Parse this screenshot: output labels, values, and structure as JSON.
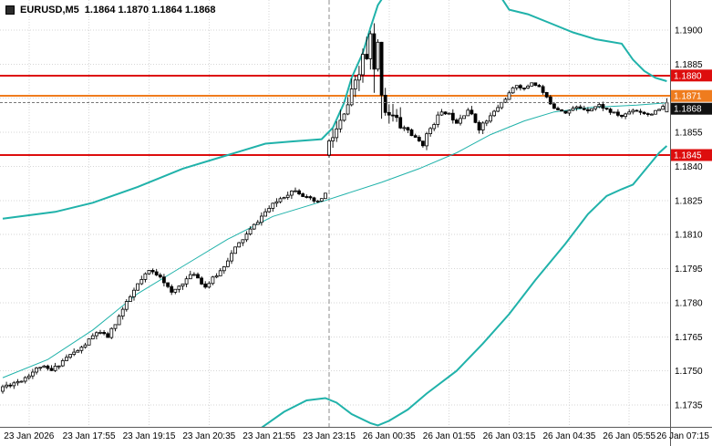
{
  "legend": {
    "symbol": "EURUSD,M5",
    "ohlc": "1.1864 1.1870 1.1864 1.1868"
  },
  "colors": {
    "background": "#ffffff",
    "grid": "#d6d6d6",
    "band": "#20b2aa",
    "candle": "#000000",
    "candle_up_fill": "#ffffff",
    "candle_down_fill": "#000000",
    "level_red": "#dd0e0e",
    "level_orange": "#ef7c1e",
    "bid_line": "#777777",
    "bid_badge": "#111111",
    "separator": "#8c8c8c",
    "axis_text": "#000000",
    "axis_border": "#5a5a5a"
  },
  "chart_data": {
    "type": "candlestick",
    "symbol": "EURUSD",
    "timeframe": "M5",
    "ohlc_current": {
      "open": "1.1864",
      "high": "1.1870",
      "low": "1.1864",
      "close": "1.1868"
    },
    "last_bar": {
      "o": 1.1864,
      "h": 1.187,
      "l": 1.1864,
      "c": 1.1868
    },
    "bars_total": 178,
    "grid": {
      "first_label_bar": 7,
      "label_step": 16,
      "day_separator_bar": 87
    },
    "x_labels": [
      "23 Jan 2026",
      "23 Jan 17:55",
      "23 Jan 19:15",
      "23 Jan 20:35",
      "23 Jan 21:55",
      "23 Jan 23:15",
      "26 Jan 00:35",
      "26 Jan 01:55",
      "26 Jan 03:15",
      "26 Jan 04:35",
      "26 Jan 05:55",
      "26 Jan 07:15"
    ],
    "price_axis": {
      "top_price": 1.191325,
      "bottom_price": 1.172536,
      "ticks": [
        1.19,
        1.1885,
        1.187,
        1.1855,
        1.184,
        1.1825,
        1.181,
        1.1795,
        1.178,
        1.1765,
        1.175,
        1.1735
      ]
    },
    "levels": [
      {
        "price": 1.188,
        "label": "1.1880",
        "color": "#dd0e0e",
        "width": 2
      },
      {
        "price": 1.1871,
        "label": "1.1871",
        "color": "#ef7c1e",
        "width": 2
      },
      {
        "price": 1.1845,
        "label": "1.1845",
        "color": "#dd0e0e",
        "width": 2
      }
    ],
    "bid": {
      "price": 1.1868,
      "label": "1.1868"
    },
    "price_path_anchors": [
      [
        0,
        1.1743
      ],
      [
        5,
        1.1746
      ],
      [
        10,
        1.1752
      ],
      [
        13,
        1.175
      ],
      [
        17,
        1.1756
      ],
      [
        21,
        1.176
      ],
      [
        25,
        1.1767
      ],
      [
        28,
        1.1765
      ],
      [
        32,
        1.1777
      ],
      [
        36,
        1.1788
      ],
      [
        39,
        1.1794
      ],
      [
        42,
        1.1792
      ],
      [
        45,
        1.1784
      ],
      [
        48,
        1.1789
      ],
      [
        51,
        1.1793
      ],
      [
        54,
        1.1787
      ],
      [
        58,
        1.1794
      ],
      [
        62,
        1.1804
      ],
      [
        66,
        1.1812
      ],
      [
        70,
        1.182
      ],
      [
        74,
        1.1826
      ],
      [
        78,
        1.183
      ],
      [
        81,
        1.1826
      ],
      [
        84,
        1.1824
      ],
      [
        86,
        1.1828
      ],
      [
        87,
        1.185
      ],
      [
        89,
        1.1856
      ],
      [
        91,
        1.1862
      ],
      [
        93,
        1.1872
      ],
      [
        95,
        1.188
      ],
      [
        96,
        1.189
      ],
      [
        97,
        1.1885
      ],
      [
        98,
        1.1896
      ],
      [
        99,
        1.188
      ],
      [
        100,
        1.1892
      ],
      [
        101,
        1.1875
      ],
      [
        102,
        1.1865
      ],
      [
        104,
        1.1862
      ],
      [
        106,
        1.1858
      ],
      [
        108,
        1.1856
      ],
      [
        110,
        1.1852
      ],
      [
        112,
        1.185
      ],
      [
        114,
        1.1857
      ],
      [
        116,
        1.1862
      ],
      [
        118,
        1.1864
      ],
      [
        121,
        1.186
      ],
      [
        124,
        1.1865
      ],
      [
        127,
        1.1857
      ],
      [
        129,
        1.186
      ],
      [
        132,
        1.1866
      ],
      [
        135,
        1.1872
      ],
      [
        137,
        1.1876
      ],
      [
        139,
        1.1874
      ],
      [
        141,
        1.1877
      ],
      [
        143,
        1.1875
      ],
      [
        145,
        1.187
      ],
      [
        147,
        1.1866
      ],
      [
        150,
        1.1864
      ],
      [
        153,
        1.1866
      ],
      [
        156,
        1.1865
      ],
      [
        159,
        1.1867
      ],
      [
        162,
        1.1864
      ],
      [
        165,
        1.1862
      ],
      [
        168,
        1.1865
      ],
      [
        170,
        1.1864
      ],
      [
        172,
        1.1863
      ],
      [
        174,
        1.1864
      ],
      [
        176,
        1.1866
      ],
      [
        177,
        1.1868
      ]
    ],
    "upper_band_anchors": [
      [
        0,
        1.1817
      ],
      [
        14,
        1.182
      ],
      [
        24,
        1.1824
      ],
      [
        36,
        1.1831
      ],
      [
        48,
        1.1839
      ],
      [
        60,
        1.1845
      ],
      [
        70,
        1.185
      ],
      [
        77,
        1.1851
      ],
      [
        85,
        1.1852
      ],
      [
        88,
        1.1857
      ],
      [
        91,
        1.1868
      ],
      [
        93,
        1.1879
      ],
      [
        96,
        1.189
      ],
      [
        98,
        1.1901
      ],
      [
        100,
        1.1911
      ],
      [
        102,
        1.1916
      ],
      [
        110,
        1.1924
      ],
      [
        120,
        1.1926
      ],
      [
        128,
        1.192
      ],
      [
        133,
        1.1914
      ],
      [
        135,
        1.1909
      ],
      [
        140,
        1.1907
      ],
      [
        146,
        1.1903
      ],
      [
        152,
        1.1899
      ],
      [
        158,
        1.1896
      ],
      [
        165,
        1.1894
      ],
      [
        168,
        1.1887
      ],
      [
        171,
        1.1882
      ],
      [
        174,
        1.1879
      ],
      [
        177,
        1.18775
      ]
    ],
    "lower_band_anchors": [
      [
        60,
        1.1715
      ],
      [
        69,
        1.1725
      ],
      [
        75,
        1.1732
      ],
      [
        81,
        1.1737
      ],
      [
        86,
        1.1738
      ],
      [
        89,
        1.1736
      ],
      [
        93,
        1.1731
      ],
      [
        98,
        1.1727
      ],
      [
        100,
        1.1726
      ],
      [
        103,
        1.1728
      ],
      [
        108,
        1.1733
      ],
      [
        113,
        1.174
      ],
      [
        121,
        1.175
      ],
      [
        128,
        1.1762
      ],
      [
        135,
        1.1775
      ],
      [
        142,
        1.179
      ],
      [
        150,
        1.1806
      ],
      [
        156,
        1.1819
      ],
      [
        161,
        1.1827
      ],
      [
        165,
        1.183
      ],
      [
        168,
        1.1832
      ],
      [
        170,
        1.1836
      ],
      [
        173,
        1.1842
      ],
      [
        175,
        1.1846
      ],
      [
        177,
        1.1849
      ]
    ],
    "middle_line_anchors": [
      [
        0,
        1.1747
      ],
      [
        12,
        1.1755
      ],
      [
        24,
        1.1768
      ],
      [
        36,
        1.1784
      ],
      [
        48,
        1.1796
      ],
      [
        60,
        1.1808
      ],
      [
        72,
        1.1818
      ],
      [
        86,
        1.1825
      ],
      [
        101,
        1.1833
      ],
      [
        111,
        1.1839
      ],
      [
        121,
        1.1846
      ],
      [
        130,
        1.1854
      ],
      [
        139,
        1.186
      ],
      [
        147,
        1.1864
      ],
      [
        157,
        1.1866
      ],
      [
        169,
        1.1867
      ],
      [
        177,
        1.1868
      ]
    ]
  }
}
